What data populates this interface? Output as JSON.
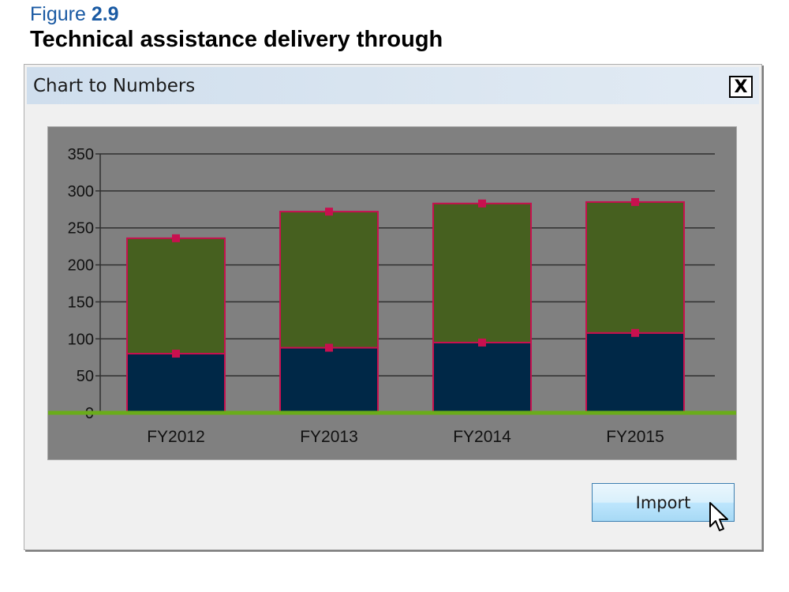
{
  "figure": {
    "label_prefix": "Figure",
    "label_number": "2.9",
    "title": "Technical assistance delivery through"
  },
  "dialog": {
    "title": "Chart to Numbers",
    "close_label": "X",
    "import_label": "Import"
  },
  "colors": {
    "lower_segment": "#002847",
    "upper_segment": "#46601f",
    "segment_border": "#c8104f",
    "marker": "#c8104f",
    "baseline": "#6aac1a",
    "gridline": "#2f2f2f",
    "panel_bg": "#808080"
  },
  "chart_data": {
    "type": "bar",
    "stacked": true,
    "categories": [
      "FY2012",
      "FY2013",
      "FY2014",
      "FY2015"
    ],
    "series": [
      {
        "values": [
          80,
          88,
          95,
          108
        ]
      },
      {
        "values": [
          156,
          184,
          188,
          177
        ]
      }
    ],
    "totals": [
      236,
      272,
      283,
      285
    ],
    "ylim": [
      0,
      350
    ],
    "yticks": [
      "0",
      "50",
      "100",
      "150",
      "200",
      "250",
      "300",
      "350"
    ],
    "ytick_values": [
      0,
      50,
      100,
      150,
      200,
      250,
      300,
      350
    ],
    "grid": true,
    "legend": "none",
    "title": "",
    "xlabel": "",
    "ylabel": ""
  }
}
